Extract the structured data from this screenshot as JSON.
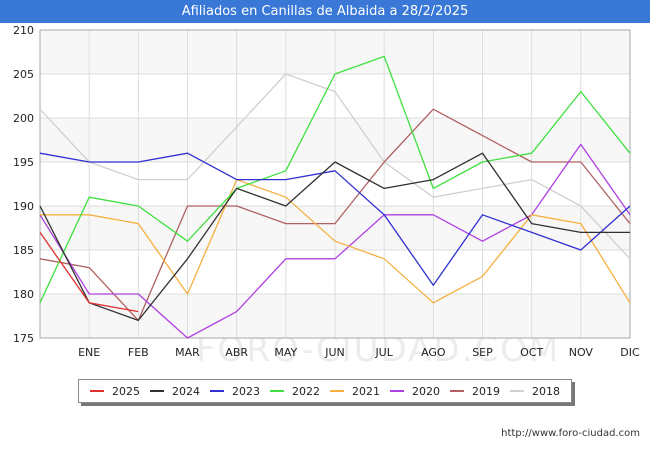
{
  "header": {
    "title": "Afiliados en Canillas de Albaida a 28/2/2025"
  },
  "watermark": "FORO-CIUDAD.COM",
  "source": "http://www.foro-ciudad.com",
  "chart_data": {
    "type": "line",
    "title": "Afiliados en Canillas de Albaida a 28/2/2025",
    "xlabel": "",
    "ylabel": "",
    "categories": [
      "",
      "ENE",
      "FEB",
      "MAR",
      "ABR",
      "MAY",
      "JUN",
      "JUL",
      "AGO",
      "SEP",
      "OCT",
      "NOV",
      "DIC"
    ],
    "yticks": [
      175,
      180,
      185,
      190,
      195,
      200,
      205,
      210
    ],
    "ylim": [
      175,
      210
    ],
    "grid": true,
    "legend_position": "bottom",
    "series": [
      {
        "name": "2018",
        "color": "#d0d0d0",
        "values": [
          201,
          195,
          193,
          193,
          199,
          205,
          203,
          195,
          191,
          192,
          193,
          190,
          184
        ]
      },
      {
        "name": "2019",
        "color": "#b06060",
        "values": [
          184,
          183,
          177,
          190,
          190,
          188,
          188,
          195,
          201,
          198,
          195,
          195,
          188
        ]
      },
      {
        "name": "2020",
        "color": "#b040e0",
        "values": [
          189,
          180,
          180,
          175,
          178,
          184,
          184,
          189,
          189,
          186,
          189,
          197,
          189
        ]
      },
      {
        "name": "2021",
        "color": "#f5b040",
        "values": [
          189,
          189,
          188,
          180,
          193,
          191,
          186,
          184,
          179,
          182,
          189,
          188,
          179
        ]
      },
      {
        "name": "2022",
        "color": "#40e040",
        "values": [
          179,
          191,
          190,
          186,
          192,
          194,
          205,
          207,
          192,
          195,
          196,
          203,
          196
        ]
      },
      {
        "name": "2023",
        "color": "#3030d0",
        "values": [
          196,
          195,
          195,
          196,
          193,
          193,
          194,
          189,
          181,
          189,
          187,
          185,
          190
        ]
      },
      {
        "name": "2024",
        "color": "#303030",
        "values": [
          190,
          179,
          177,
          184,
          192,
          190,
          195,
          192,
          193,
          196,
          188,
          187,
          187
        ]
      },
      {
        "name": "2025",
        "color": "#e03030",
        "values": [
          187,
          179,
          178,
          null,
          null,
          null,
          null,
          null,
          null,
          null,
          null,
          null,
          null
        ]
      }
    ],
    "legend_order": [
      "2025",
      "2024",
      "2023",
      "2022",
      "2021",
      "2020",
      "2019",
      "2018"
    ]
  }
}
